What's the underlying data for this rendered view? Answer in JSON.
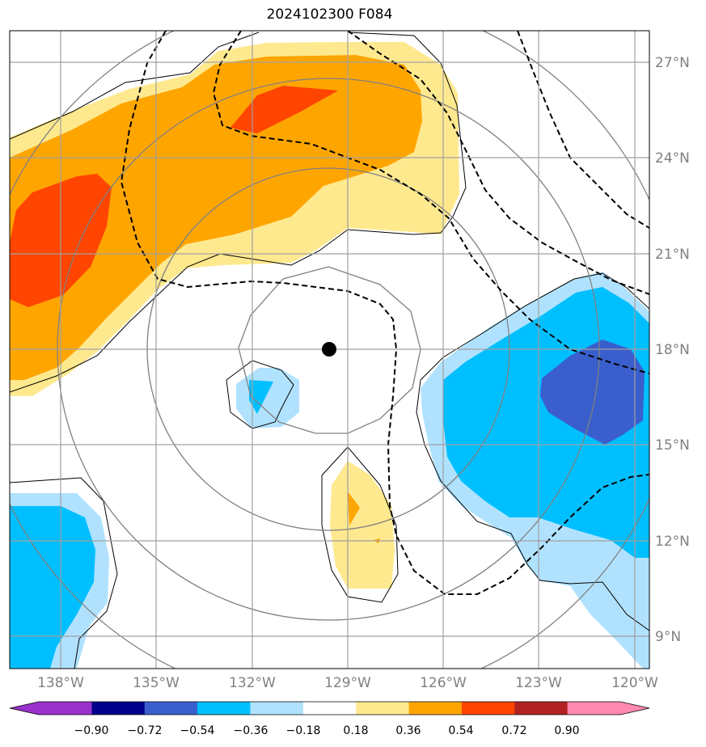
{
  "title": "2024102300 F084",
  "map": {
    "center_marker": {
      "lon": -129.6,
      "lat": 18.0
    },
    "lat_labels": [
      "27°N",
      "24°N",
      "21°N",
      "18°N",
      "15°N",
      "12°N",
      "9°N"
    ],
    "lon_labels": [
      "138°W",
      "135°W",
      "132°W",
      "129°W",
      "126°W",
      "123°W",
      "120°W"
    ],
    "extent": {
      "lon_min": -139.9,
      "lon_max": -119.6,
      "lat_min": 8.0,
      "lat_max": 28.0
    }
  },
  "colorbar": {
    "ticks": [
      "−0.90",
      "−0.72",
      "−0.54",
      "−0.36",
      "−0.18",
      "0.18",
      "0.36",
      "0.54",
      "0.72",
      "0.90"
    ],
    "colors": [
      "#9932cc",
      "#00008b",
      "#3a5fcd",
      "#00bfff",
      "#b0e2ff",
      "#ffffff",
      "#ffe98f",
      "#ffa500",
      "#ff4500",
      "#b22222",
      "#ff88b0"
    ]
  },
  "field_colors": {
    "neg_light": "#b0e2ff",
    "neg_mid": "#00bfff",
    "neg_dark": "#3a5fcd",
    "pos_light": "#ffe98f",
    "pos_mid": "#ffa500",
    "pos_dark": "#ff4500"
  }
}
